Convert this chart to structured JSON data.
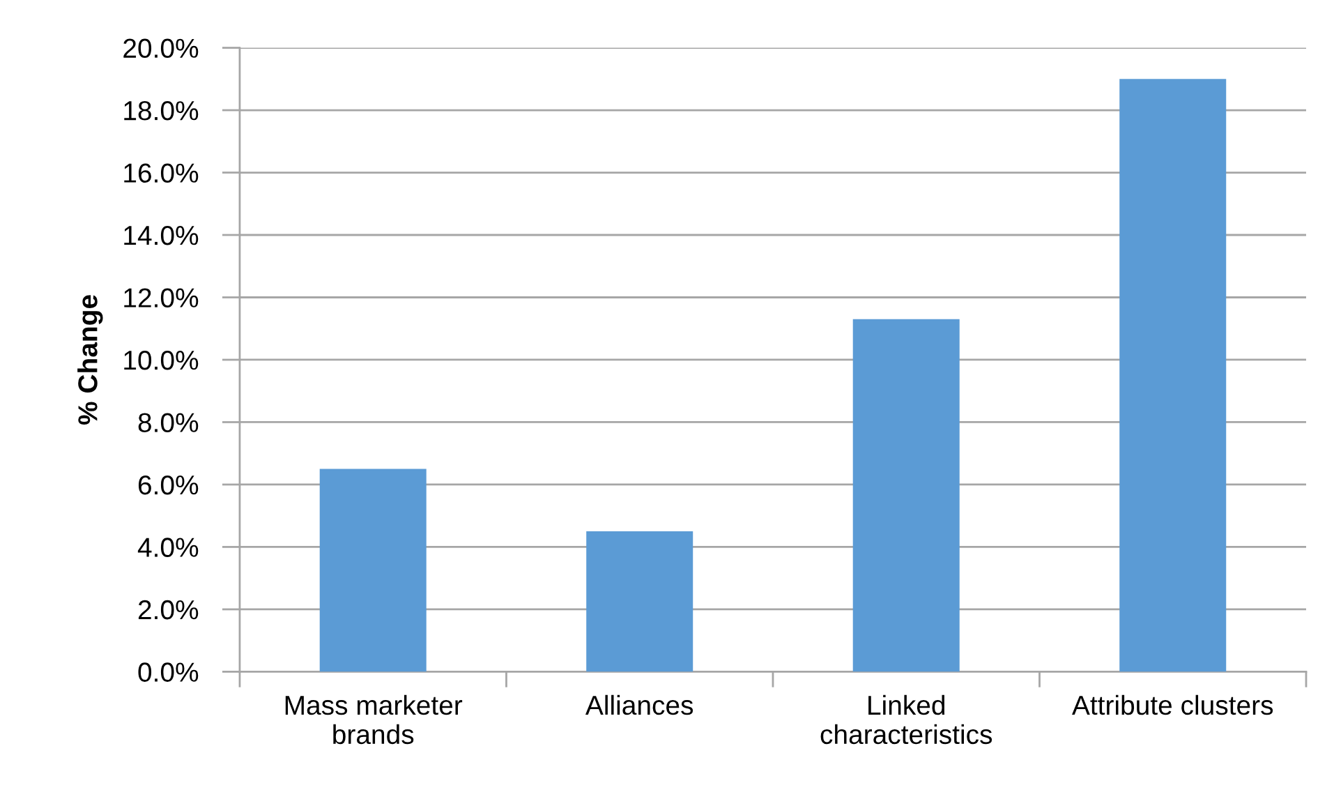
{
  "chart_data": {
    "type": "bar",
    "categories": [
      "Mass marketer\nbrands",
      "Alliances",
      "Linked\ncharacteristics",
      "Attribute clusters"
    ],
    "values": [
      6.5,
      4.5,
      11.3,
      19.0
    ],
    "color": "#5b9bd5",
    "ylabel": "% Change",
    "ylim": [
      0,
      20
    ],
    "yticks": [
      {
        "value": 0,
        "label": "0.0%"
      },
      {
        "value": 2,
        "label": "2.0%"
      },
      {
        "value": 4,
        "label": "4.0%"
      },
      {
        "value": 6,
        "label": "6.0%"
      },
      {
        "value": 8,
        "label": "8.0%"
      },
      {
        "value": 10,
        "label": "10.0%"
      },
      {
        "value": 12,
        "label": "12.0%"
      },
      {
        "value": 14,
        "label": "14.0%"
      },
      {
        "value": 16,
        "label": "16.0%"
      },
      {
        "value": 18,
        "label": "18.0%"
      },
      {
        "value": 20,
        "label": "20.0%"
      }
    ],
    "grid": "y",
    "legend": false
  }
}
